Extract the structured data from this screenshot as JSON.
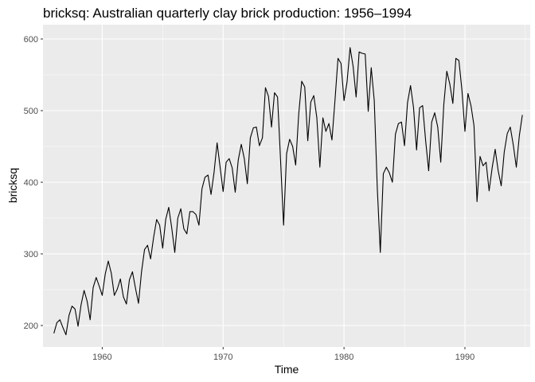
{
  "chart_data": {
    "type": "line",
    "title": "bricksq: Australian quarterly clay brick production: 1956–1994",
    "xlabel": "Time",
    "ylabel": "bricksq",
    "xlim": [
      1955.1,
      1995.4
    ],
    "ylim": [
      170,
      620
    ],
    "x_ticks": [
      1960,
      1970,
      1980,
      1990
    ],
    "y_ticks": [
      200,
      300,
      400,
      500,
      600
    ],
    "x_tick_labels": [
      "1960",
      "1970",
      "1980",
      "1990"
    ],
    "y_tick_labels": [
      "200",
      "300",
      "400",
      "500",
      "600"
    ],
    "grid": true,
    "background": "#ebebeb",
    "grid_color": "#ffffff",
    "line_color": "#000000",
    "series": [
      {
        "start": 1956.0,
        "frequency": 4,
        "values": [
          189,
          204,
          208,
          197,
          187,
          214,
          227,
          223,
          199,
          229,
          249,
          234,
          208,
          253,
          267,
          255,
          242,
          272,
          290,
          273,
          242,
          251,
          265,
          240,
          230,
          264,
          275,
          252,
          231,
          275,
          306,
          312,
          293,
          323,
          348,
          340,
          308,
          348,
          365,
          336,
          302,
          350,
          363,
          335,
          328,
          359,
          359,
          355,
          340,
          391,
          407,
          410,
          383,
          414,
          455,
          421,
          387,
          428,
          433,
          420,
          386,
          431,
          453,
          433,
          398,
          462,
          476,
          477,
          451,
          462,
          532,
          520,
          477,
          525,
          519,
          431,
          340,
          440,
          460,
          450,
          424,
          495,
          541,
          533,
          458,
          512,
          521,
          490,
          421,
          490,
          471,
          482,
          459,
          514,
          573,
          566,
          514,
          540,
          588,
          562,
          519,
          582,
          580,
          579,
          499,
          560,
          514,
          392,
          302,
          412,
          421,
          413,
          400,
          467,
          482,
          484,
          451,
          511,
          535,
          504,
          445,
          504,
          507,
          458,
          416,
          484,
          497,
          477,
          428,
          508,
          555,
          537,
          510,
          573,
          570,
          529,
          471,
          524,
          507,
          479,
          373,
          436,
          423,
          428,
          388,
          420,
          446,
          416,
          395,
          442,
          468,
          477,
          452,
          421,
          465,
          494
        ]
      }
    ]
  }
}
